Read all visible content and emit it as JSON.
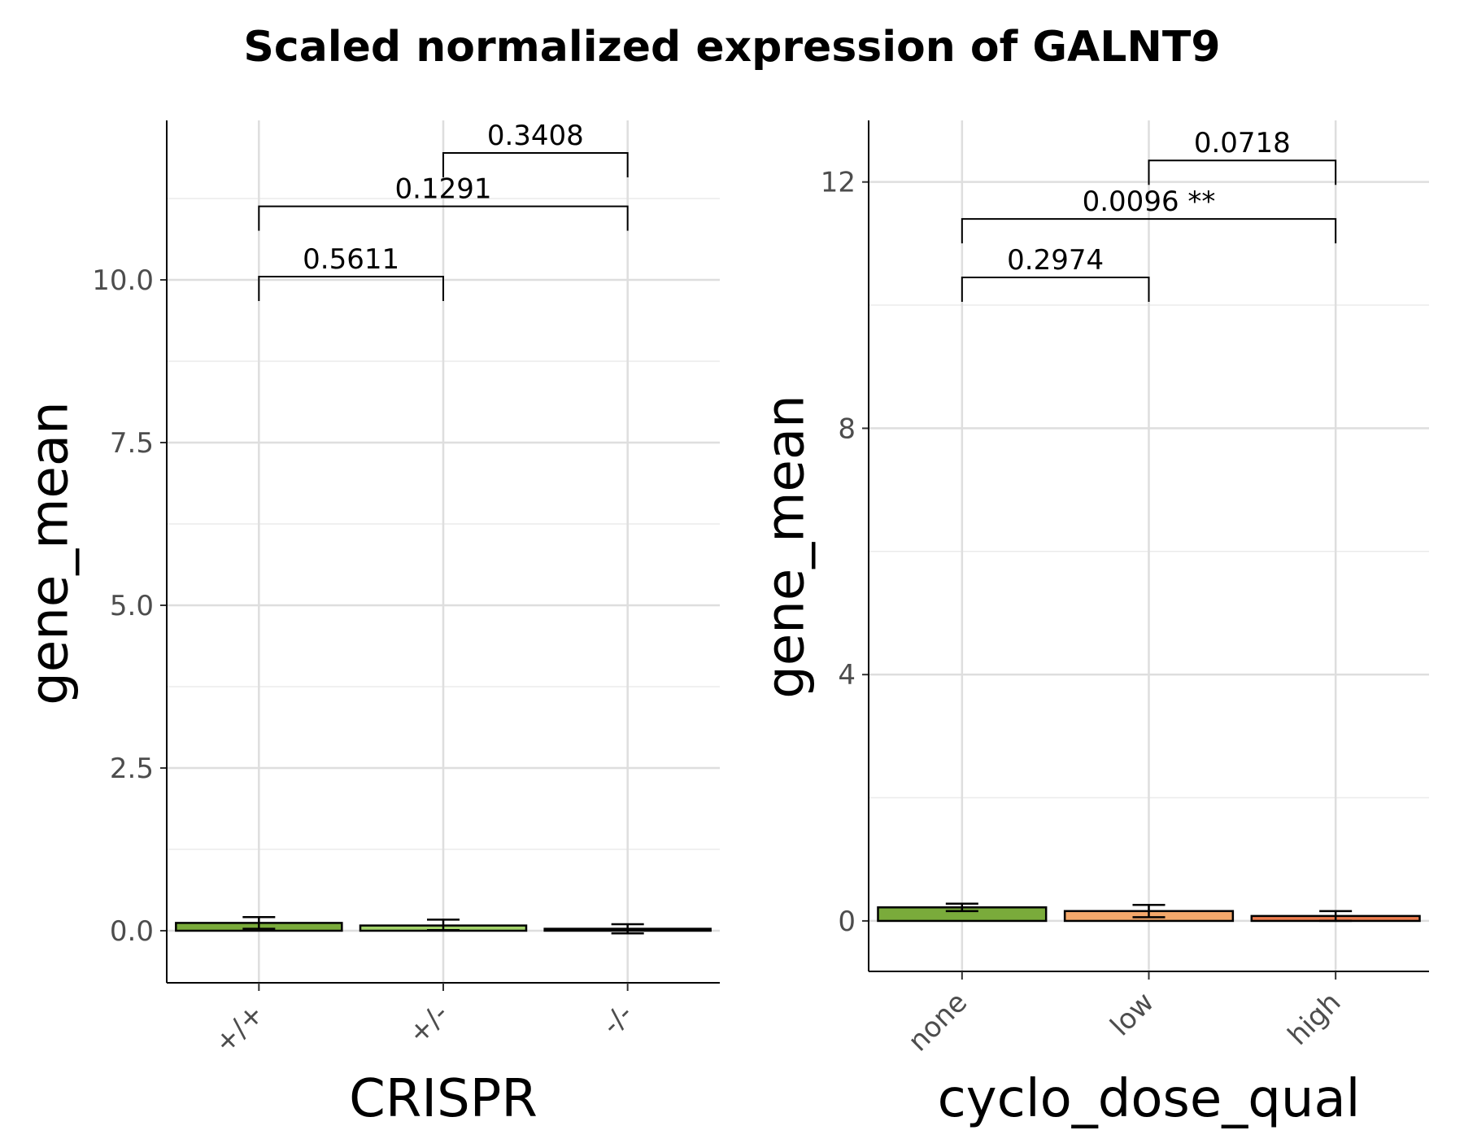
{
  "figure": {
    "title": "Scaled normalized expression of GALNT9"
  },
  "chart_data": [
    {
      "type": "bar",
      "xlabel": "CRISPR",
      "ylabel": "gene_mean",
      "categories": [
        "+/+",
        "+/-",
        "-/-"
      ],
      "values": [
        0.12,
        0.08,
        0.03
      ],
      "error_low": [
        0.03,
        0.01,
        -0.04
      ],
      "error_high": [
        0.21,
        0.17,
        0.1
      ],
      "colors": [
        "#7aab3b",
        "#a3d36b",
        "#c9e6a4"
      ],
      "ylim": [
        -0.8,
        12.45
      ],
      "yticks": [
        0.0,
        2.5,
        5.0,
        7.5,
        10.0
      ],
      "ytick_labels": [
        "0.0",
        "2.5",
        "5.0",
        "7.5",
        "10.0"
      ],
      "grid": true,
      "comparisons": [
        {
          "from": 0,
          "to": 1,
          "y": 10.05,
          "label": "0.5611"
        },
        {
          "from": 0,
          "to": 2,
          "y": 11.13,
          "label": "0.1291"
        },
        {
          "from": 1,
          "to": 2,
          "y": 11.95,
          "label": "0.3408"
        }
      ]
    },
    {
      "type": "bar",
      "xlabel": "cyclo_dose_qual",
      "ylabel": "gene_mean",
      "categories": [
        "none",
        "low",
        "high"
      ],
      "values": [
        0.22,
        0.16,
        0.08
      ],
      "error_low": [
        0.16,
        0.06,
        0.0
      ],
      "error_high": [
        0.28,
        0.26,
        0.16
      ],
      "colors": [
        "#7aab3b",
        "#f4a86b",
        "#ee7d4f"
      ],
      "ylim": [
        -0.82,
        13.0
      ],
      "yticks": [
        0,
        4,
        8,
        12
      ],
      "ytick_labels": [
        "0",
        "4",
        "8",
        "12"
      ],
      "grid": true,
      "comparisons": [
        {
          "from": 0,
          "to": 1,
          "y": 10.45,
          "label": "0.2974"
        },
        {
          "from": 0,
          "to": 2,
          "y": 11.4,
          "label": "0.0096 **"
        },
        {
          "from": 1,
          "to": 2,
          "y": 12.35,
          "label": "0.0718"
        }
      ]
    }
  ]
}
